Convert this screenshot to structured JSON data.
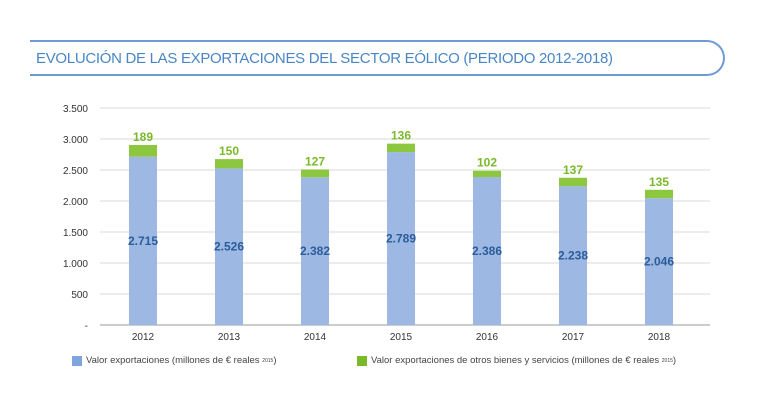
{
  "title": "EVOLUCIÓN DE LAS EXPORTACIONES DEL SECTOR EÓLICO (PERIODO 2012-2018)",
  "colors": {
    "blue": "#9db8e2",
    "green": "#8dc63f",
    "blue_label": "#2b5d9b",
    "green_label": "#7ab929",
    "title": "#4a86c5"
  },
  "chart_data": {
    "type": "bar",
    "stacked": true,
    "title": "EVOLUCIÓN DE LAS EXPORTACIONES DEL SECTOR EÓLICO (PERIODO 2012-2018)",
    "categories": [
      "2012",
      "2013",
      "2014",
      "2015",
      "2016",
      "2017",
      "2018"
    ],
    "series": [
      {
        "name": "Valor exportaciones (millones de € reales",
        "sub": "2015",
        "values": [
          2715,
          2526,
          2382,
          2789,
          2386,
          2238,
          2046
        ],
        "labels": [
          "2.715",
          "2.526",
          "2.382",
          "2.789",
          "2.386",
          "2.238",
          "2.046"
        ]
      },
      {
        "name": "Valor exportaciones de otros bienes y servicios (millones de € reales",
        "sub": "2015",
        "values": [
          189,
          150,
          127,
          136,
          102,
          137,
          135
        ],
        "labels": [
          "189",
          "150",
          "127",
          "136",
          "102",
          "137",
          "135"
        ]
      }
    ],
    "ylim": [
      0,
      3500
    ],
    "yticks": [
      0,
      500,
      1000,
      1500,
      2000,
      2500,
      3000,
      3500
    ],
    "ytick_labels": [
      "-",
      "500",
      "1.000",
      "1.500",
      "2.000",
      "2.500",
      "3.000",
      "3.500"
    ],
    "grid": true,
    "legend": "bottom"
  }
}
